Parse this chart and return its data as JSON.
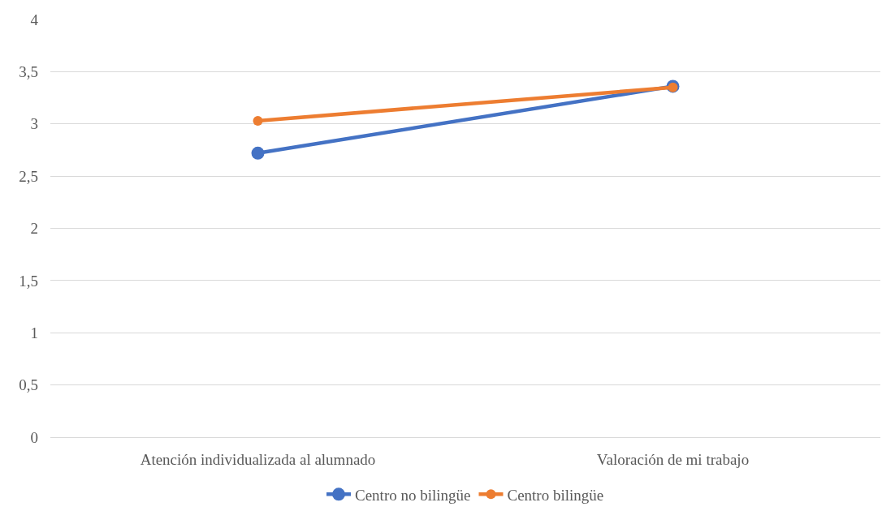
{
  "chart_data": {
    "type": "line",
    "categories": [
      "Atención individualizada al alumnado",
      "Valoración de mi trabajo"
    ],
    "series": [
      {
        "name": "Centro no bilingüe",
        "color": "#4472c4",
        "values": [
          2.72,
          3.36
        ]
      },
      {
        "name": "Centro bilingüe",
        "color": "#ed7d31",
        "values": [
          3.03,
          3.35
        ]
      }
    ],
    "ylim": [
      0,
      4
    ],
    "yticks": [
      0,
      {
        "value": 0.5,
        "label": "0,5"
      },
      1,
      {
        "value": 1.5,
        "label": "1,5"
      },
      2,
      {
        "value": 2.5,
        "label": "2,5"
      },
      3,
      {
        "value": 3.5,
        "label": "3,5"
      },
      4
    ],
    "grid": "y",
    "legend": "bottom",
    "marker": "circle",
    "line_style": "solid"
  }
}
